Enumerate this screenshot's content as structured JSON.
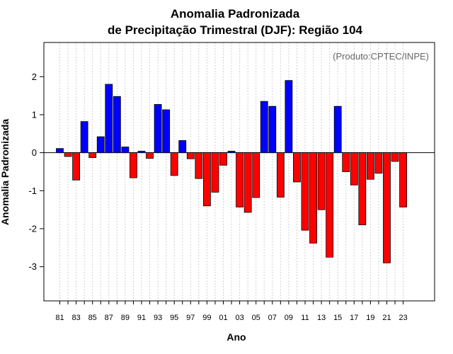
{
  "chart_data": {
    "type": "bar",
    "title_line1": "Anomalia Padronizada",
    "title_line2": "de Precipitação Trimestral (DJF): Região 104",
    "xlabel": "Ano",
    "ylabel": "Anomalia Padronizada",
    "credit": "(Produto:CPTEC/INPE)",
    "ylim": [
      -3.9,
      2.9
    ],
    "yticks": [
      2,
      1,
      0,
      -1,
      -2,
      -3
    ],
    "ytick_labels": [
      "2",
      "1",
      "0",
      "-1",
      "-2",
      "-3"
    ],
    "x_tick_labels": [
      "81",
      "83",
      "85",
      "87",
      "89",
      "91",
      "93",
      "95",
      "97",
      "99",
      "01",
      "03",
      "05",
      "07",
      "09",
      "11",
      "13",
      "15",
      "17",
      "19",
      "21",
      "23"
    ],
    "categories": [
      "81",
      "82",
      "83",
      "84",
      "85",
      "86",
      "87",
      "88",
      "89",
      "90",
      "91",
      "92",
      "93",
      "94",
      "95",
      "96",
      "97",
      "98",
      "99",
      "00",
      "01",
      "02",
      "03",
      "04",
      "05",
      "06",
      "07",
      "08",
      "09",
      "10",
      "11",
      "12",
      "13",
      "14",
      "15",
      "16",
      "17",
      "18",
      "19",
      "20",
      "21",
      "22",
      "23"
    ],
    "values": [
      0.11,
      -0.1,
      -0.72,
      0.82,
      -0.13,
      0.42,
      1.8,
      1.48,
      0.15,
      -0.66,
      0.04,
      -0.15,
      1.27,
      1.13,
      -0.6,
      0.32,
      -0.16,
      -0.68,
      -1.4,
      -1.04,
      -0.33,
      0.04,
      -1.43,
      -1.57,
      -1.18,
      1.35,
      1.22,
      -1.17,
      1.9,
      -0.77,
      -2.04,
      -2.38,
      -1.5,
      -2.75,
      1.22,
      -0.5,
      -0.85,
      -1.9,
      -0.7,
      -0.54,
      -2.9,
      -0.23,
      -1.43
    ],
    "colors": {
      "positive": "#0000ff",
      "negative": "#ff0000",
      "frame": "#000000",
      "grid": "#d0d0d0"
    }
  }
}
